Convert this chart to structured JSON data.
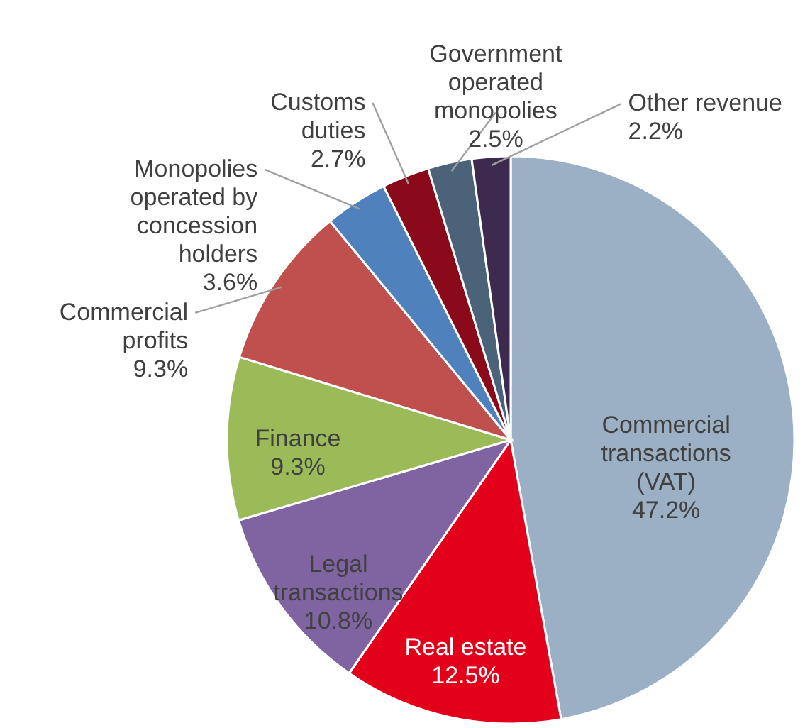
{
  "chart_data": {
    "type": "pie",
    "categories": [
      "Commercial transactions (VAT)",
      "Real estate",
      "Legal transactions",
      "Finance",
      "Commercial profits",
      "Monopolies operated by concession holders",
      "Customs duties",
      "Government operated monopolies",
      "Other revenue"
    ],
    "values": [
      47.2,
      12.5,
      10.8,
      9.3,
      9.3,
      3.6,
      2.7,
      2.5,
      2.2
    ],
    "colors": [
      "#9bb0c4",
      "#e2001a",
      "#8064a2",
      "#9bbb59",
      "#c0504d",
      "#4f81bd",
      "#8b0a1a",
      "#4a6378",
      "#3d2a4e"
    ],
    "value_labels": [
      "47.2%",
      "12.5%",
      "10.8%",
      "9.3%",
      "9.3%",
      "3.6%",
      "2.7%",
      "2.5%",
      "2.2%"
    ]
  }
}
